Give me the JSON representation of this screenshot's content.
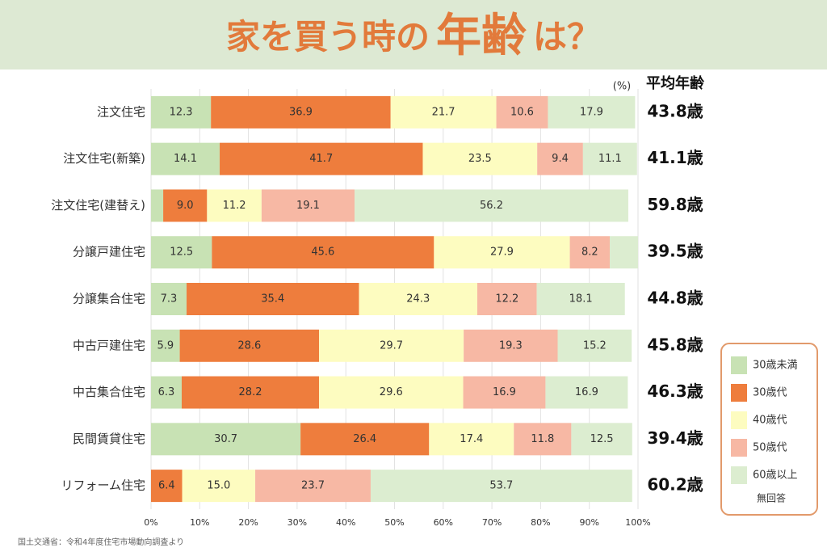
{
  "chart_data": {
    "type": "stacked-bar-horizontal",
    "title_parts": [
      "家を買う時の",
      "年齢",
      "は？"
    ],
    "unit": "(%)",
    "average_header": "平均年齢",
    "source": "国土交通省：令和4年度住宅市場動向調査より",
    "categories": [
      "注文住宅",
      "注文住宅(新築)",
      "注文住宅(建替え)",
      "分譲戸建住宅",
      "分譲集合住宅",
      "中古戸建住宅",
      "中古集合住宅",
      "民間賃貸住宅",
      "リフォーム住宅"
    ],
    "average_age_labels": [
      "43.8歳",
      "41.1歳",
      "59.8歳",
      "39.5歳",
      "44.8歳",
      "45.8歳",
      "46.3歳",
      "39.4歳",
      "60.2歳"
    ],
    "series": [
      {
        "name": "30歳未満",
        "color": "#c8e2b4",
        "values": [
          12.3,
          14.1,
          2.5,
          12.5,
          7.3,
          5.9,
          6.3,
          30.7,
          null
        ],
        "value_labels": [
          "12.3",
          "14.1",
          null,
          "12.5",
          "7.3",
          "5.9",
          "6.3",
          "30.7",
          null
        ]
      },
      {
        "name": "30歳代",
        "color": "#ee7d3d",
        "values": [
          36.9,
          41.7,
          9.0,
          45.6,
          35.4,
          28.6,
          28.2,
          26.4,
          6.4
        ],
        "value_labels": [
          "36.9",
          "41.7",
          "9.0",
          "45.6",
          "35.4",
          "28.6",
          "28.2",
          "26.4",
          "6.4"
        ]
      },
      {
        "name": "40歳代",
        "color": "#fdfcc0",
        "values": [
          21.7,
          23.5,
          11.2,
          27.9,
          24.3,
          29.7,
          29.6,
          17.4,
          15.0
        ],
        "value_labels": [
          "21.7",
          "23.5",
          "11.2",
          "27.9",
          "24.3",
          "29.7",
          "29.6",
          "17.4",
          "15.0"
        ]
      },
      {
        "name": "50歳代",
        "color": "#f7b8a4",
        "values": [
          10.6,
          9.4,
          19.1,
          8.2,
          12.2,
          19.3,
          16.9,
          11.8,
          23.7
        ],
        "value_labels": [
          "10.6",
          "9.4",
          "19.1",
          "8.2",
          "12.2",
          "19.3",
          "16.9",
          "11.8",
          "23.7"
        ]
      },
      {
        "name": "60歳以上",
        "color": "#dcedd0",
        "values": [
          17.9,
          11.1,
          56.2,
          5.8,
          18.1,
          15.2,
          16.9,
          12.5,
          53.7
        ],
        "value_labels": [
          "17.9",
          "11.1",
          "56.2",
          null,
          "18.1",
          "15.2",
          "16.9",
          "12.5",
          "53.7"
        ]
      }
    ],
    "legend_extra": "無回答",
    "xlim": [
      0,
      100
    ],
    "xticks": [
      {
        "value": 0,
        "label": "0%"
      },
      {
        "value": 10,
        "label": "10%"
      },
      {
        "value": 20,
        "label": "20%"
      },
      {
        "value": 30,
        "label": "30%"
      },
      {
        "value": 40,
        "label": "40%"
      },
      {
        "value": 50,
        "label": "50%"
      },
      {
        "value": 60,
        "label": "60%"
      },
      {
        "value": 70,
        "label": "70%"
      },
      {
        "value": 80,
        "label": "80%"
      },
      {
        "value": 90,
        "label": "90%"
      },
      {
        "value": 100,
        "label": "100%"
      }
    ],
    "grid": true
  }
}
